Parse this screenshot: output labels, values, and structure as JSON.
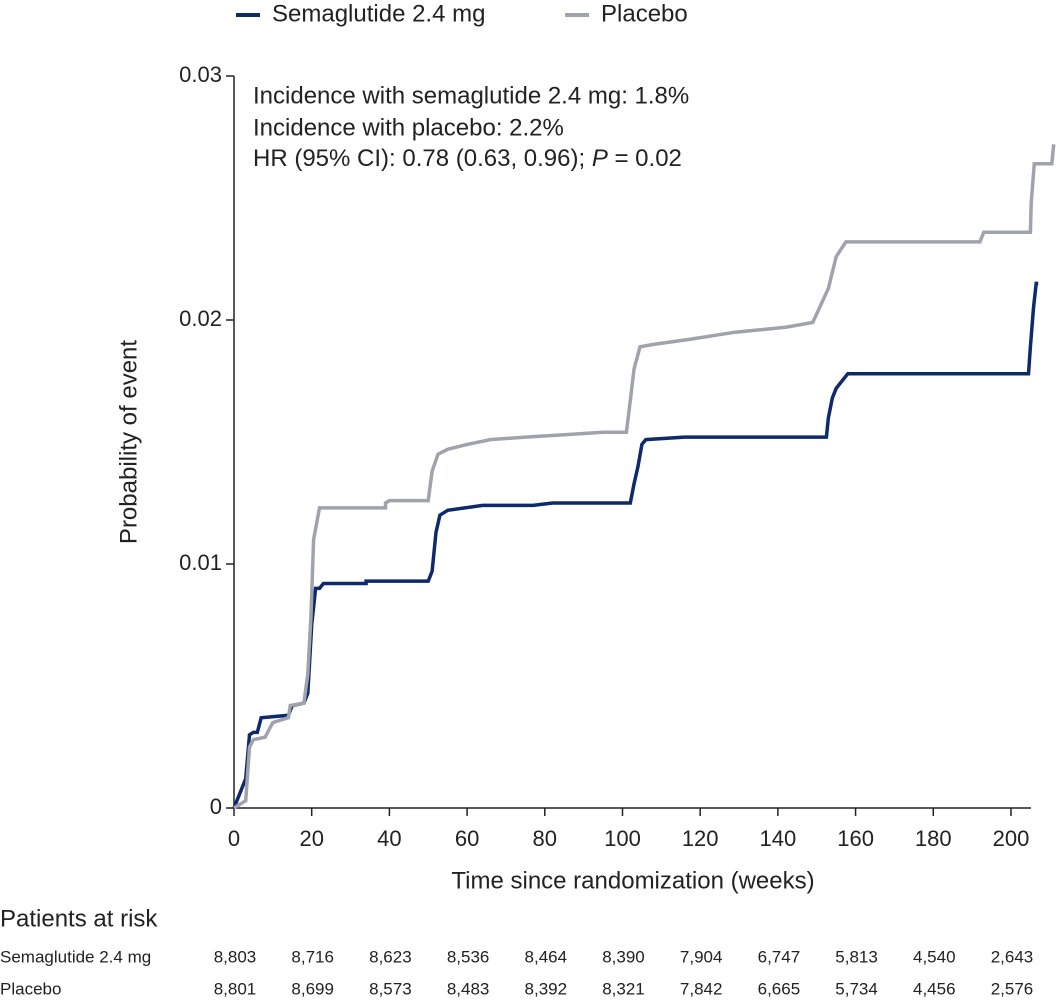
{
  "chart_data": {
    "type": "line",
    "step": true,
    "x_label": "Time since randomization (weeks)",
    "y_label": "Probability of event",
    "annotations": [
      "Incidence with semaglutide 2.4 mg: 1.8%",
      "Incidence with placebo: 2.2%"
    ],
    "hr_annotation": {
      "before": "HR (95% CI): 0.78 (0.63, 0.96); ",
      "italic": "P",
      "after": " = 0.02"
    },
    "xlim": [
      0,
      205
    ],
    "xticks": [
      0,
      20,
      40,
      60,
      80,
      100,
      120,
      140,
      160,
      180,
      200
    ],
    "ylim": [
      0,
      0.03
    ],
    "yticks": [
      0,
      0.01,
      0.02,
      0.03
    ],
    "legend": "top",
    "series": [
      {
        "name": "Semaglutide 2.4 mg",
        "color": "#0f2a6b",
        "x": [
          0,
          1,
          2,
          3,
          4,
          5,
          6,
          7,
          14,
          15,
          18,
          19,
          20,
          21,
          22,
          23,
          34,
          34,
          50,
          51,
          52,
          53,
          55,
          64,
          77,
          82,
          102,
          103,
          104,
          105,
          106,
          116,
          152.5,
          153,
          154,
          155,
          158,
          204.5,
          205,
          205.8,
          206.5,
          207
        ],
        "values": [
          0,
          0.0004,
          0.0008,
          0.0012,
          0.003,
          0.0031,
          0.0031,
          0.0037,
          0.0038,
          0.0042,
          0.0043,
          0.0047,
          0.0075,
          0.009,
          0.009,
          0.0092,
          0.0092,
          0.0093,
          0.0093,
          0.0097,
          0.0113,
          0.012,
          0.0122,
          0.0124,
          0.0124,
          0.0125,
          0.0125,
          0.0133,
          0.014,
          0.0149,
          0.0151,
          0.0152,
          0.0152,
          0.016,
          0.0168,
          0.0172,
          0.0178,
          0.0178,
          0.0189,
          0.0205,
          0.0215,
          0.0215
        ]
      },
      {
        "name": "Placebo",
        "color": "#a0a3ac",
        "x": [
          0,
          3,
          4,
          5,
          8,
          10,
          14,
          14.5,
          18,
          19,
          19.8,
          20.5,
          22,
          39,
          39,
          40,
          50,
          51,
          52.5,
          55,
          60,
          66,
          75,
          85,
          95,
          101,
          102,
          103,
          104.5,
          108,
          117,
          129,
          142,
          149,
          153,
          155,
          157.5,
          192,
          193,
          205,
          205.2,
          206,
          210.5,
          211
        ],
        "values": [
          0,
          0.0003,
          0.0025,
          0.0028,
          0.0029,
          0.0035,
          0.0037,
          0.0042,
          0.0043,
          0.0055,
          0.0078,
          0.011,
          0.0123,
          0.0123,
          0.0125,
          0.0126,
          0.0126,
          0.0138,
          0.0145,
          0.0147,
          0.0149,
          0.0151,
          0.0152,
          0.0153,
          0.0154,
          0.0154,
          0.0167,
          0.018,
          0.0189,
          0.019,
          0.0192,
          0.0195,
          0.0197,
          0.0199,
          0.0213,
          0.0226,
          0.0232,
          0.0232,
          0.0236,
          0.0236,
          0.0248,
          0.0264,
          0.0264,
          0.0272
        ]
      }
    ]
  },
  "risk_table": {
    "title": "Patients at risk",
    "rows": [
      {
        "label": "Semaglutide 2.4 mg",
        "values": [
          "8,803",
          "8,716",
          "8,623",
          "8,536",
          "8,464",
          "8,390",
          "7,904",
          "6,747",
          "5,813",
          "4,540",
          "2,643"
        ]
      },
      {
        "label": "Placebo",
        "values": [
          "8,801",
          "8,699",
          "8,573",
          "8,483",
          "8,392",
          "8,321",
          "7,842",
          "6,665",
          "5,734",
          "4,456",
          "2,576"
        ]
      }
    ]
  }
}
